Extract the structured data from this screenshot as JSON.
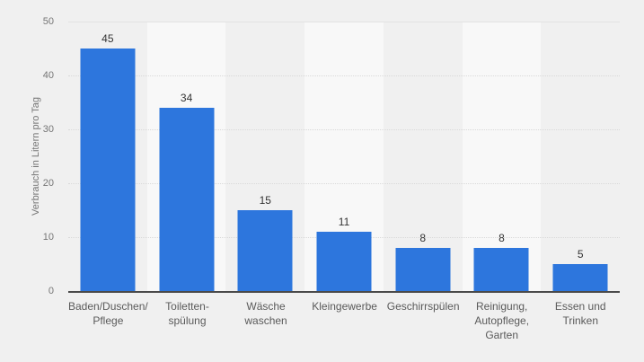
{
  "chart_data": {
    "type": "bar",
    "title": "",
    "xlabel": "",
    "ylabel": "Verbrauch in Litern pro Tag",
    "categories": [
      "Baden/Duschen/ Pflege",
      "Toiletten- spülung",
      "Wäsche waschen",
      "Kleingewerbe",
      "Geschirrspülen",
      "Reinigung, Autopflege, Garten",
      "Essen und Trinken"
    ],
    "category_lines": [
      [
        "Baden/Duschen/",
        "Pflege"
      ],
      [
        "Toiletten-",
        "spülung"
      ],
      [
        "Wäsche",
        "waschen"
      ],
      [
        "Kleingewerbe"
      ],
      [
        "Geschirrspülen"
      ],
      [
        "Reinigung,",
        "Autopflege,",
        "Garten"
      ],
      [
        "Essen und",
        "Trinken"
      ]
    ],
    "values": [
      45,
      34,
      15,
      11,
      8,
      8,
      5
    ],
    "yticks": [
      0,
      10,
      20,
      30,
      40,
      50
    ],
    "ylim": [
      0,
      50
    ],
    "grid": "horizontal-dotted",
    "legend": "none",
    "colors": {
      "bar": "#2d76dd",
      "background": "#f0f0f0",
      "band_alt": "#f8f8f8",
      "baseline": "#4a4a4a",
      "gridline": "#d9d9d9",
      "tick_text": "#767676",
      "value_text": "#333333",
      "category_text": "#5a5a5a"
    }
  }
}
